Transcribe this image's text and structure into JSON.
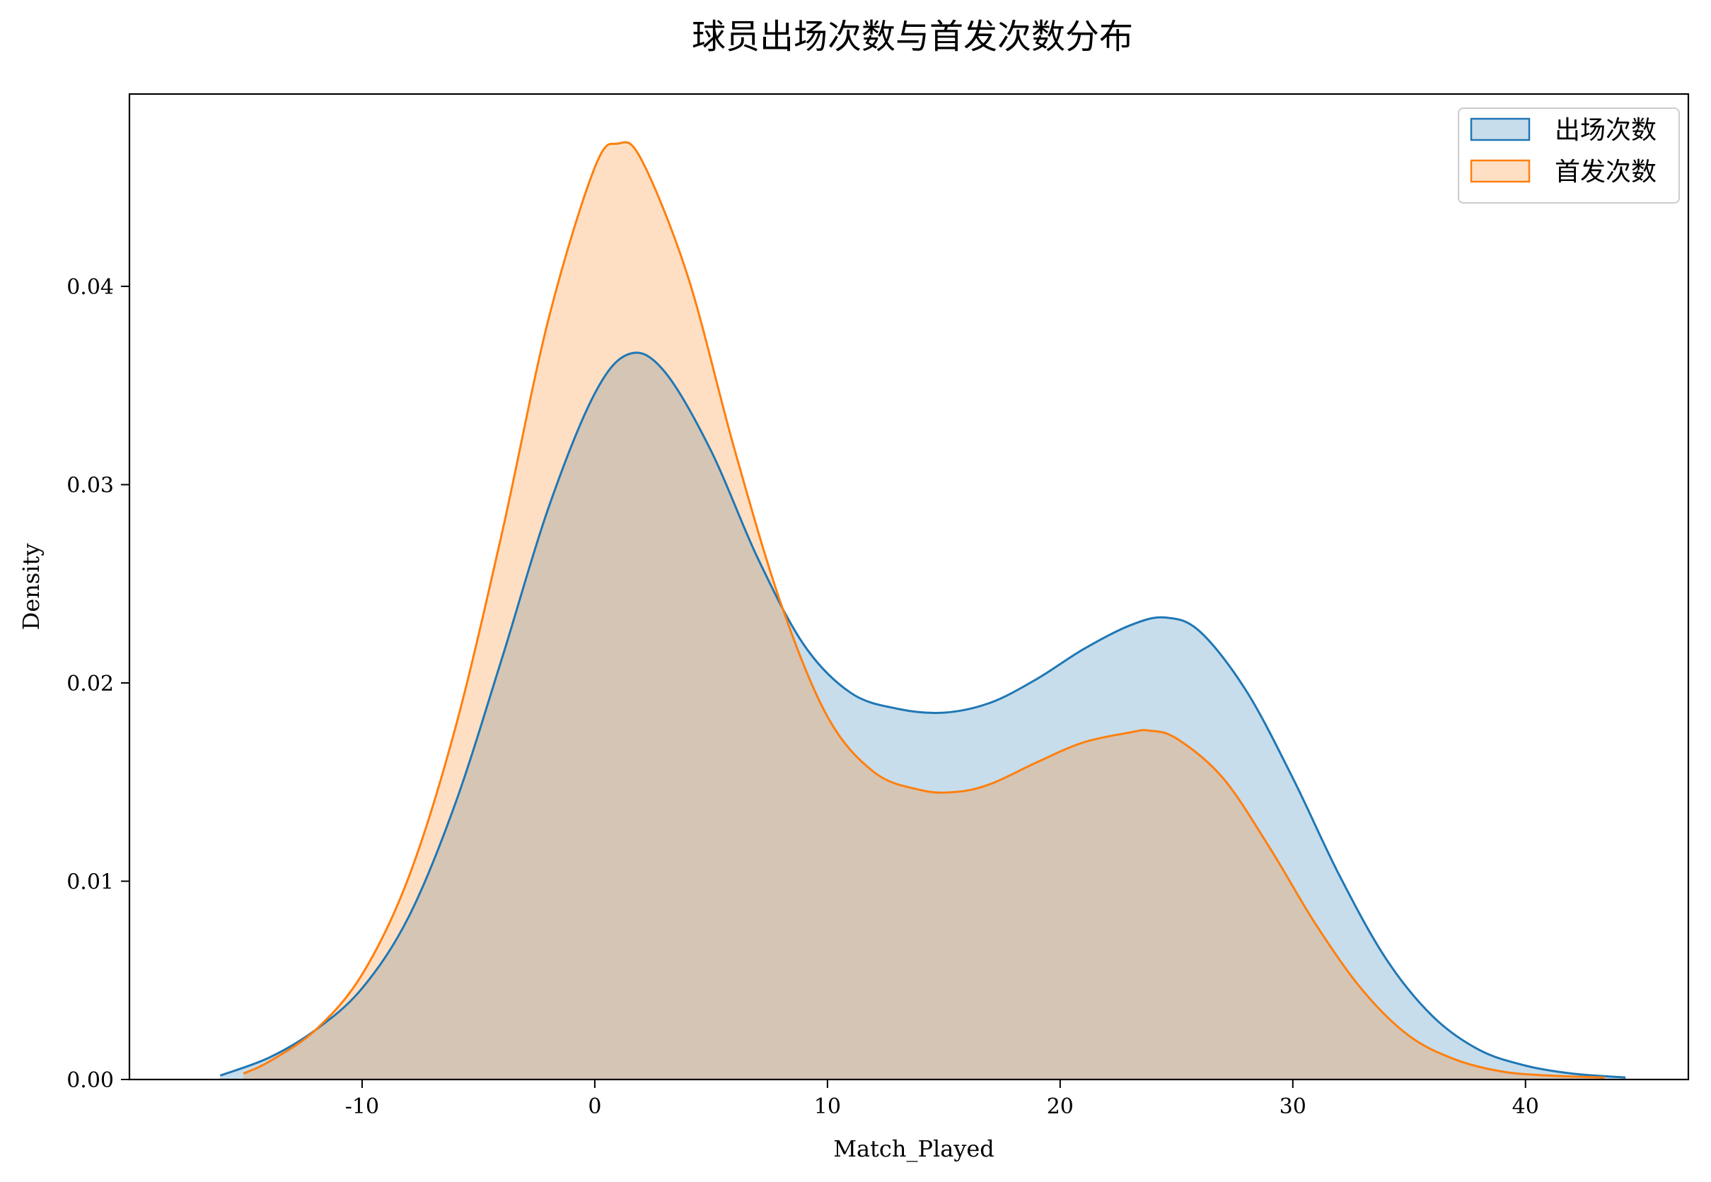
{
  "chart_data": {
    "type": "area",
    "title": "球员出场次数与首发次数分布",
    "xlabel": "Match_Played",
    "ylabel": "Density",
    "xlim": [
      -20,
      47
    ],
    "ylim": [
      0,
      0.0497
    ],
    "x_ticks": [
      -10,
      0,
      10,
      20,
      30,
      40
    ],
    "x_tick_labels": [
      "-10",
      "0",
      "10",
      "20",
      "30",
      "40"
    ],
    "y_ticks": [
      0,
      0.01,
      0.02,
      0.03,
      0.04
    ],
    "y_tick_labels": [
      "0.00",
      "0.01",
      "0.02",
      "0.03",
      "0.04"
    ],
    "grid": false,
    "legend_position": "top-right",
    "series": [
      {
        "name": "出场次数",
        "color": "#1f77b4",
        "fill_color": "#1f77b4",
        "fill_opacity": 0.25,
        "x": [
          -16.1,
          -14,
          -12,
          -10,
          -8,
          -6,
          -4,
          -2,
          0,
          1.5,
          3,
          5,
          7,
          9,
          11,
          13,
          15,
          17,
          19,
          21,
          23,
          24.5,
          26,
          28,
          30,
          32,
          34,
          36,
          38,
          40,
          42,
          44.3
        ],
        "y": [
          0.0002,
          0.0011,
          0.0025,
          0.0046,
          0.0082,
          0.0139,
          0.0212,
          0.0288,
          0.0346,
          0.0366,
          0.0357,
          0.0317,
          0.0263,
          0.0219,
          0.0195,
          0.0187,
          0.0185,
          0.019,
          0.0202,
          0.0217,
          0.0229,
          0.0233,
          0.0226,
          0.0196,
          0.0152,
          0.0103,
          0.0061,
          0.0032,
          0.0015,
          0.0007,
          0.0003,
          0.0001
        ]
      },
      {
        "name": "首发次数",
        "color": "#ff7f0e",
        "fill_color": "#ff7f0e",
        "fill_opacity": 0.25,
        "x": [
          -15.1,
          -14,
          -12,
          -10,
          -8,
          -6,
          -4,
          -2,
          0,
          1,
          2,
          4,
          6,
          8,
          10,
          12,
          14,
          15.5,
          17,
          19,
          21,
          23,
          23.8,
          25,
          27,
          29,
          31,
          33,
          35,
          37,
          39,
          41,
          43.4
        ],
        "y": [
          0.0003,
          0.0009,
          0.0025,
          0.0053,
          0.0102,
          0.0177,
          0.0275,
          0.0383,
          0.046,
          0.0472,
          0.0464,
          0.0405,
          0.0318,
          0.024,
          0.0183,
          0.0155,
          0.0146,
          0.0145,
          0.0149,
          0.016,
          0.017,
          0.0175,
          0.0176,
          0.0172,
          0.0152,
          0.0117,
          0.0078,
          0.0045,
          0.0022,
          0.001,
          0.0004,
          0.0002,
          0.0001
        ]
      }
    ]
  }
}
